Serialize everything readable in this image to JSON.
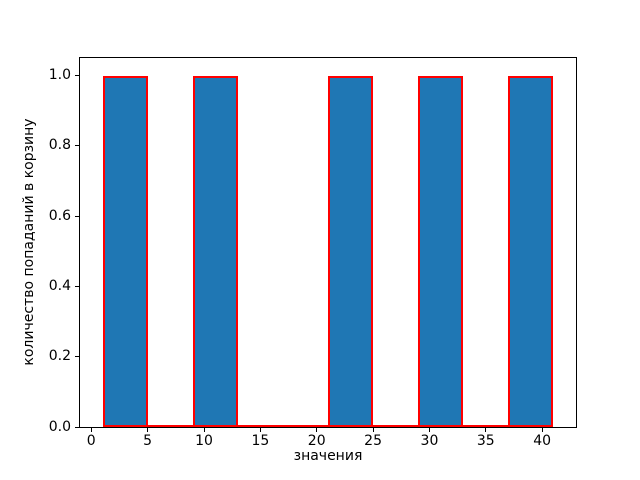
{
  "chart_data": {
    "type": "bar",
    "subtype": "histogram",
    "title": "",
    "xlabel": "значения",
    "ylabel": "количество попаданий в корзину",
    "bin_edges": [
      1,
      5,
      9,
      13,
      17,
      21,
      25,
      29,
      33,
      37,
      41
    ],
    "counts": [
      1,
      0,
      1,
      0,
      0,
      1,
      0,
      1,
      0,
      1
    ],
    "xlim": [
      -1,
      43
    ],
    "ylim": [
      0,
      1.05
    ],
    "x_ticks": [
      "0",
      "5",
      "10",
      "15",
      "20",
      "25",
      "30",
      "35",
      "40"
    ],
    "y_ticks": [
      "0.0",
      "0.2",
      "0.4",
      "0.6",
      "0.8",
      "1.0"
    ],
    "bar_fill_color": "#1f77b4",
    "bar_edge_color": "#ff0000",
    "spine_color": "#000000",
    "grid": false,
    "legend_position": "none"
  }
}
